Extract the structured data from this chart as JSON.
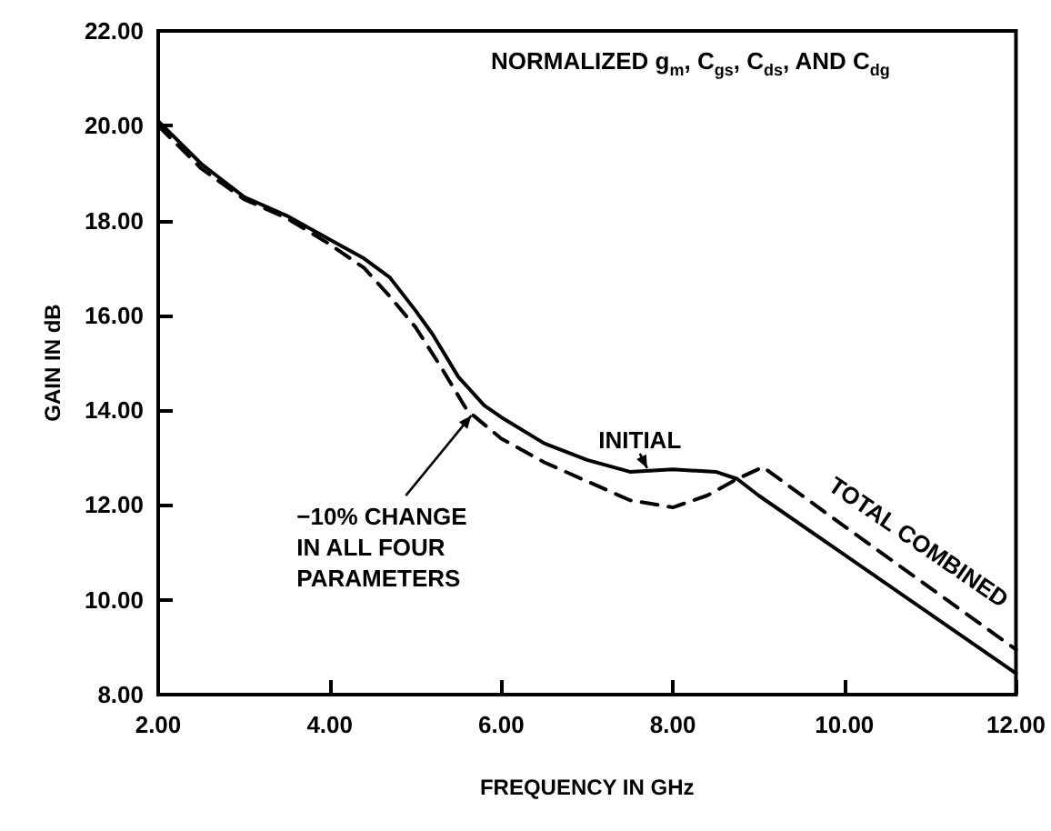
{
  "chart_data": {
    "type": "line",
    "title": "NORMALIZED g$_{m}$, C$_{gs}$, C$_{ds}$, AND C$_{dg}$",
    "xlabel": "FREQUENCY IN GHz",
    "ylabel": "GAIN IN dB",
    "xlim": [
      2,
      12
    ],
    "xticks": [
      {
        "value": 2,
        "label": "2.00"
      },
      {
        "value": 4,
        "label": "4.00"
      },
      {
        "value": 6,
        "label": "6.00"
      },
      {
        "value": 8,
        "label": "8.00"
      },
      {
        "value": 10,
        "label": "10.00"
      },
      {
        "value": 12,
        "label": "12.00"
      }
    ],
    "ylim": [
      8,
      22
    ],
    "yticks": [
      {
        "value": 8,
        "label": "8.00"
      },
      {
        "value": 10,
        "label": "10.00"
      },
      {
        "value": 12,
        "label": "12.00"
      },
      {
        "value": 14,
        "label": "14.00"
      },
      {
        "value": 16,
        "label": "16.00"
      },
      {
        "value": 18,
        "label": "18.00"
      },
      {
        "value": 20,
        "label": "20.00"
      },
      {
        "value": 22,
        "label": "22.00"
      }
    ],
    "marker": "none",
    "series": [
      {
        "color": "#000000",
        "line_style": "solid",
        "x": [
          2.0,
          2.5,
          3.0,
          3.5,
          4.0,
          4.4,
          4.7,
          5.0,
          5.2,
          5.5,
          5.8,
          6.0,
          6.5,
          7.0,
          7.5,
          8.0,
          8.5,
          8.75,
          9.0,
          10.0,
          11.0,
          12.0
        ],
        "values": [
          20.1,
          19.2,
          18.5,
          18.1,
          17.6,
          17.2,
          16.8,
          16.1,
          15.6,
          14.7,
          14.1,
          13.85,
          13.3,
          12.95,
          12.7,
          12.75,
          12.7,
          12.55,
          12.2,
          10.95,
          9.7,
          8.45
        ]
      },
      {
        "color": "#000000",
        "line_style": "dashed",
        "x": [
          2.0,
          2.5,
          3.0,
          3.5,
          4.0,
          4.4,
          4.7,
          5.0,
          5.3,
          5.6,
          6.0,
          6.5,
          7.0,
          7.5,
          8.0,
          8.4,
          8.75,
          9.05,
          10.0,
          11.0,
          12.0
        ],
        "values": [
          20.0,
          19.1,
          18.45,
          18.05,
          17.5,
          17.0,
          16.4,
          15.75,
          14.9,
          14.0,
          13.4,
          12.9,
          12.5,
          12.1,
          11.95,
          12.2,
          12.55,
          12.8,
          11.55,
          10.25,
          8.95
        ]
      }
    ],
    "annotations": [
      {
        "text": "INITIAL",
        "x": 7.7,
        "y": 12.7
      },
      {
        "text": "−10% CHANGE IN ALL FOUR PARAMETERS",
        "x": 5.65,
        "y": 14.0
      },
      "TOTAL COMBINED"
    ]
  }
}
